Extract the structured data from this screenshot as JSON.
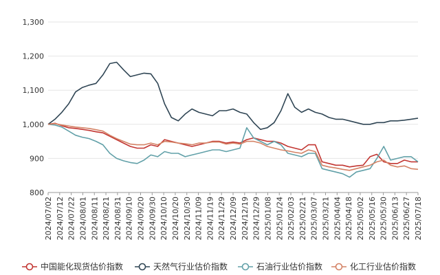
{
  "chart_data": {
    "type": "line",
    "title": "",
    "xlabel": "",
    "ylabel": "",
    "ylim": [
      800,
      1300
    ],
    "yticks": [
      800,
      900,
      1000,
      1100,
      1200,
      1300
    ],
    "ytick_labels": [
      "800",
      "900",
      "1,000",
      "1,100",
      "1,200",
      "1,300"
    ],
    "x_tick_labels": [
      "2024/07/02",
      "2024/07/12",
      "2024/07/22",
      "2024/08/01",
      "2024/08/11",
      "2024/08/21",
      "2024/08/31",
      "2024/09/10",
      "2024/09/20",
      "2024/09/30",
      "2024/10/10",
      "2024/10/20",
      "2024/10/30",
      "2024/11/09",
      "2024/11/19",
      "2024/11/29",
      "2024/12/09",
      "2024/12/19",
      "2024/12/29",
      "2025/01/08",
      "2025/01/24",
      "2025/02/03",
      "2025/02/21",
      "2025/03/07",
      "2025/03/21",
      "2025/04/04",
      "2025/04/18",
      "2025/05/02",
      "2025/05/16",
      "2025/05/30",
      "2025/06/13",
      "2025/06/27",
      "2025/07/18"
    ],
    "x_count": 55,
    "grid": "horizontal",
    "legend_position": "bottom",
    "series": [
      {
        "name": "中国能化现货估价指数",
        "color": "#c23531",
        "values": [
          1000,
          1003,
          996,
          990,
          988,
          985,
          982,
          978,
          975,
          965,
          955,
          945,
          935,
          930,
          930,
          940,
          935,
          955,
          950,
          945,
          940,
          935,
          940,
          945,
          950,
          950,
          945,
          948,
          945,
          955,
          960,
          955,
          950,
          950,
          945,
          935,
          930,
          925,
          940,
          940,
          890,
          885,
          880,
          880,
          875,
          878,
          880,
          905,
          912,
          890,
          885,
          885,
          895,
          890,
          890
        ]
      },
      {
        "name": "天然气行业估价指数",
        "color": "#2f4554",
        "values": [
          1000,
          1015,
          1035,
          1060,
          1095,
          1108,
          1115,
          1120,
          1145,
          1178,
          1182,
          1160,
          1140,
          1145,
          1150,
          1148,
          1120,
          1060,
          1020,
          1010,
          1030,
          1045,
          1035,
          1030,
          1025,
          1040,
          1040,
          1045,
          1035,
          1030,
          1005,
          985,
          990,
          1005,
          1040,
          1090,
          1050,
          1035,
          1045,
          1035,
          1030,
          1020,
          1015,
          1015,
          1010,
          1005,
          1000,
          1000,
          1005,
          1005,
          1010,
          1010,
          1012,
          1015,
          1018
        ]
      },
      {
        "name": "石油行业估价指数",
        "color": "#61a0a8",
        "values": [
          1000,
          998,
          992,
          980,
          968,
          962,
          958,
          950,
          940,
          915,
          900,
          893,
          888,
          885,
          895,
          910,
          905,
          920,
          915,
          915,
          905,
          910,
          915,
          920,
          925,
          925,
          920,
          925,
          930,
          990,
          960,
          950,
          940,
          950,
          940,
          915,
          910,
          905,
          915,
          915,
          870,
          865,
          860,
          855,
          845,
          860,
          865,
          870,
          900,
          935,
          895,
          900,
          905,
          905,
          890
        ]
      },
      {
        "name": "化工行业估价指数",
        "color": "#d48265",
        "values": [
          1000,
          1002,
          998,
          995,
          992,
          990,
          988,
          984,
          980,
          968,
          958,
          950,
          942,
          940,
          940,
          945,
          940,
          950,
          948,
          945,
          943,
          940,
          945,
          945,
          948,
          948,
          942,
          945,
          942,
          950,
          950,
          945,
          935,
          930,
          925,
          922,
          918,
          915,
          925,
          920,
          880,
          875,
          872,
          868,
          865,
          870,
          875,
          880,
          890,
          895,
          880,
          875,
          878,
          870,
          868
        ]
      }
    ]
  }
}
